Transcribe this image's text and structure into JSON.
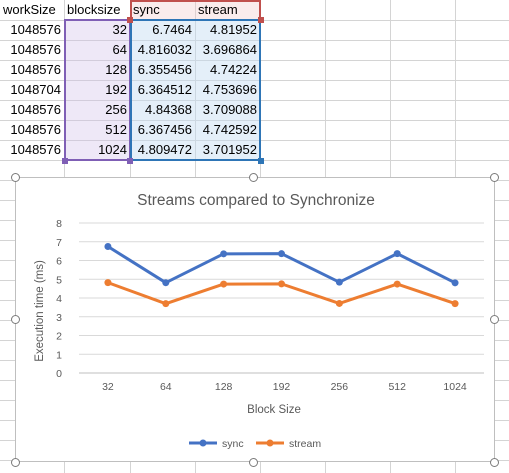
{
  "sheet": {
    "headers": [
      "workSize",
      "blocksize",
      "sync",
      "stream"
    ],
    "rows": [
      {
        "workSize": "1048576",
        "blocksize": "32",
        "sync": "6.7464",
        "stream": "4.81952"
      },
      {
        "workSize": "1048576",
        "blocksize": "64",
        "sync": "4.816032",
        "stream": "3.696864"
      },
      {
        "workSize": "1048576",
        "blocksize": "128",
        "sync": "6.355456",
        "stream": "4.74224"
      },
      {
        "workSize": "1048704",
        "blocksize": "192",
        "sync": "6.364512",
        "stream": "4.753696"
      },
      {
        "workSize": "1048576",
        "blocksize": "256",
        "sync": "4.84368",
        "stream": "3.709088"
      },
      {
        "workSize": "1048576",
        "blocksize": "512",
        "sync": "6.367456",
        "stream": "4.742592"
      },
      {
        "workSize": "1048576",
        "blocksize": "1024",
        "sync": "4.809472",
        "stream": "3.701952"
      }
    ]
  },
  "chart_data": {
    "type": "line",
    "title": "Streams compared to Synchronize",
    "xlabel": "Block Size",
    "ylabel": "Execution time (ms)",
    "categories": [
      "32",
      "64",
      "128",
      "192",
      "256",
      "512",
      "1024"
    ],
    "ylim": [
      0,
      8
    ],
    "yticks": [
      "0",
      "1",
      "2",
      "3",
      "4",
      "5",
      "6",
      "7",
      "8"
    ],
    "grid": true,
    "legend": "bottom",
    "series": [
      {
        "name": "sync",
        "color": "#4472c4",
        "values": [
          6.7464,
          4.816032,
          6.355456,
          6.364512,
          4.84368,
          6.367456,
          4.809472
        ]
      },
      {
        "name": "stream",
        "color": "#ed7d31",
        "values": [
          4.81952,
          3.696864,
          4.74224,
          4.753696,
          3.709088,
          4.742592,
          3.701952
        ]
      }
    ]
  }
}
